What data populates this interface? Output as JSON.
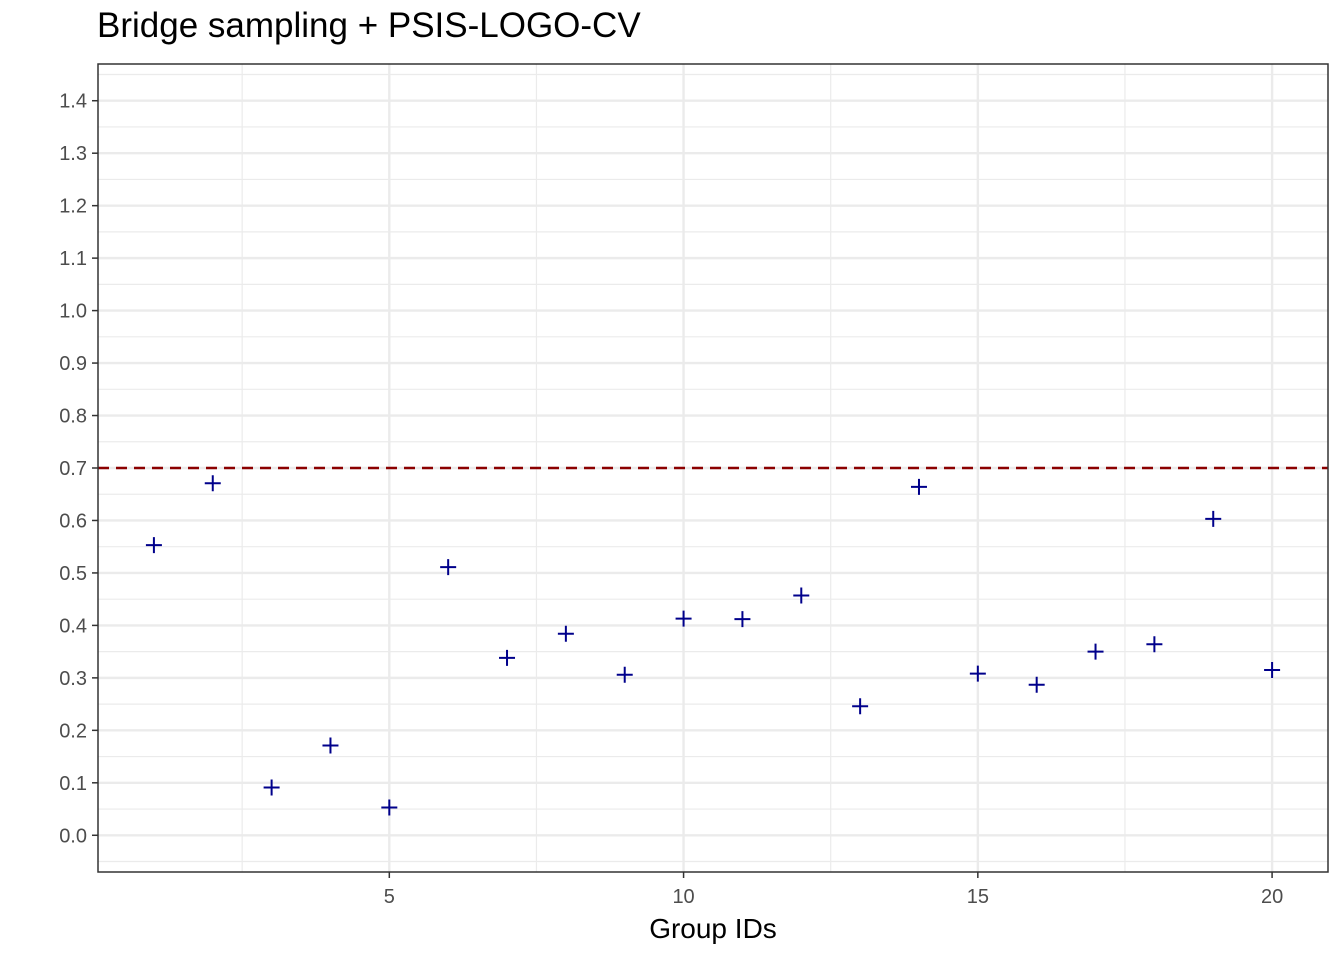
{
  "chart_data": {
    "type": "scatter",
    "title": "Bridge sampling + PSIS-LOGO-CV",
    "xlabel": "Group IDs",
    "ylabel": "",
    "xlim": [
      0.05,
      20.95
    ],
    "ylim": [
      -0.07,
      1.47
    ],
    "xticks": [
      5,
      10,
      15,
      20
    ],
    "yticks": [
      0.0,
      0.1,
      0.2,
      0.3,
      0.4,
      0.5,
      0.6,
      0.7,
      0.8,
      0.9,
      1.0,
      1.1,
      1.2,
      1.3,
      1.4
    ],
    "grid": true,
    "marker": "plus",
    "series": [
      {
        "x": [
          1,
          2,
          3,
          4,
          5,
          6,
          7,
          8,
          9,
          10,
          11,
          12,
          13,
          14,
          15,
          16,
          17,
          18,
          19,
          20
        ],
        "y": [
          0.553,
          0.671,
          0.091,
          0.171,
          0.053,
          0.511,
          0.338,
          0.384,
          0.306,
          0.413,
          0.412,
          0.457,
          0.246,
          0.664,
          0.308,
          0.287,
          0.35,
          0.364,
          0.603,
          0.315
        ],
        "color": "#00008B"
      }
    ],
    "reference_line": {
      "y": 0.7,
      "style": "dashed",
      "color": "#8B0000"
    }
  }
}
